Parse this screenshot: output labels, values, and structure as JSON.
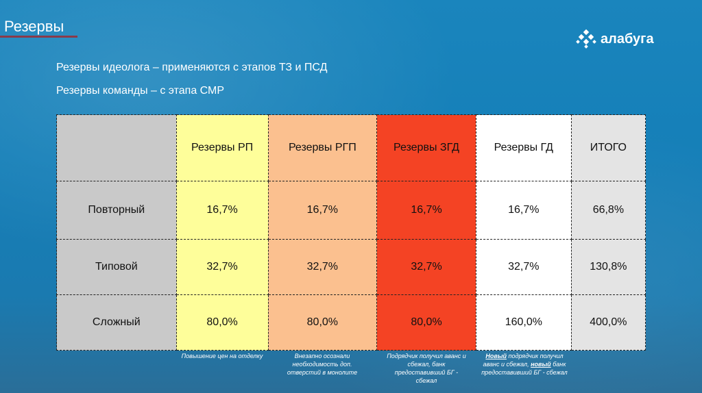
{
  "title": "Резервы",
  "logo": "алабуга",
  "lines": [
    "Резервы идеолога – применяются с этапов ТЗ и ПСД",
    "Резервы команды – с этапа СМР"
  ],
  "table": {
    "headers": [
      "",
      "Резервы РП",
      "Резервы РГП",
      "Резервы ЗГД",
      "Резервы ГД",
      "ИТОГО"
    ],
    "rows": [
      [
        "Повторный",
        "16,7%",
        "16,7%",
        "16,7%",
        "16,7%",
        "66,8%"
      ],
      [
        "Типовой",
        "32,7%",
        "32,7%",
        "32,7%",
        "32,7%",
        "130,8%"
      ],
      [
        "Сложный",
        "80,0%",
        "80,0%",
        "80,0%",
        "160,0%",
        "400,0%"
      ]
    ]
  },
  "notes": {
    "rp": "Повышение цен на отделку",
    "rgp": "Внезапно осознали необходимость доп. отверстий в монолите",
    "zgd": "Подрядчик получил аванс и сбежал, банк предоставивший БГ - сбежал",
    "gd": {
      "b1": "Новый",
      "t1": " подрядчик получил аванс и сбежал, ",
      "b2": "новый",
      "t2": " банк предоставивший БГ - сбежал"
    }
  }
}
